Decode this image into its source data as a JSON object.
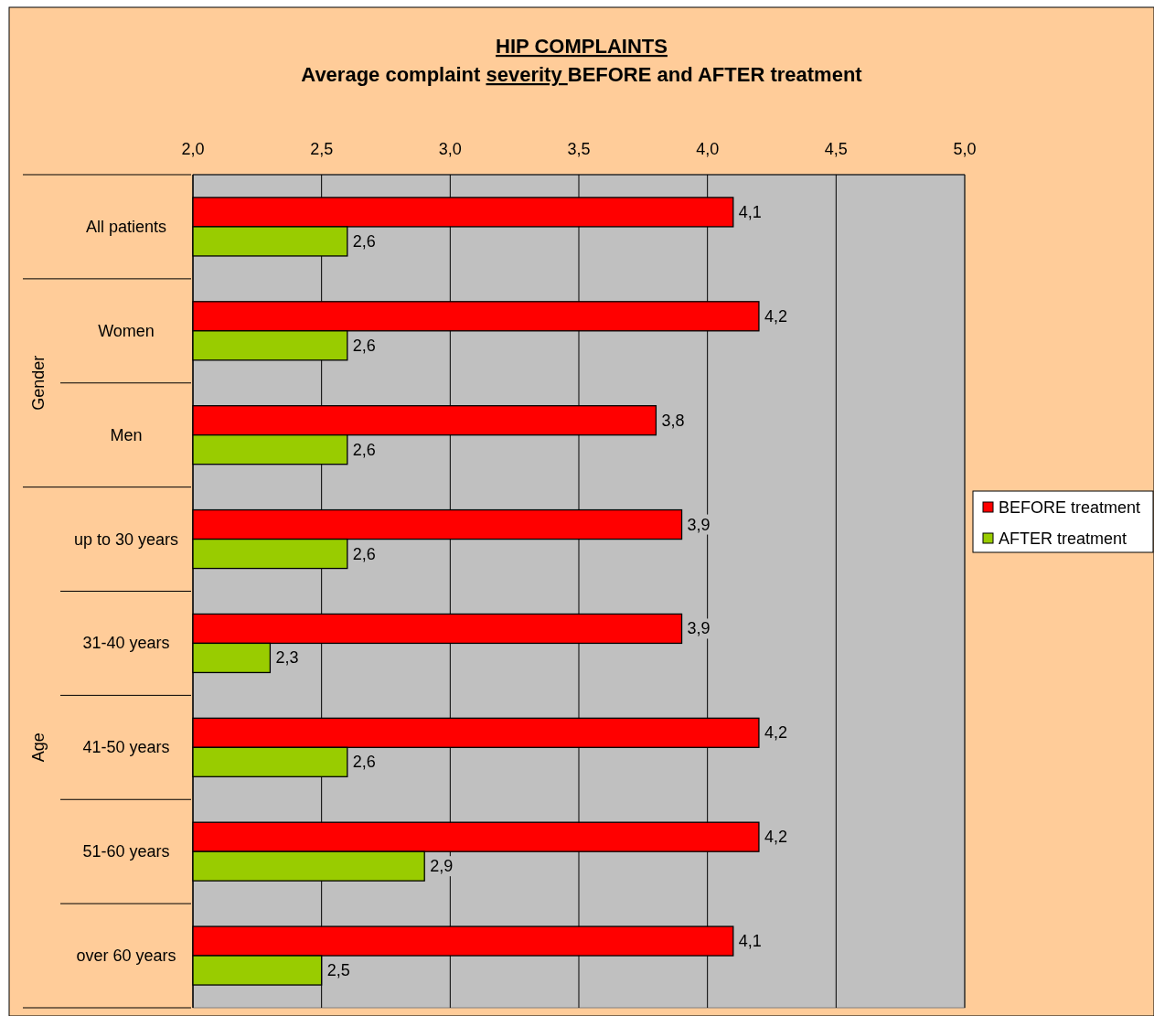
{
  "chart_data": {
    "type": "bar",
    "orientation": "horizontal",
    "title": "HIP COMPLAINTS",
    "subtitle": "Average complaint severity BEFORE and AFTER treatment",
    "categories": [
      "All patients",
      "Women",
      "Men",
      "up to 30 years",
      "31-40 years",
      "41-50 years",
      "51-60 years",
      "over 60 years"
    ],
    "series": [
      {
        "name": "BEFORE treatment",
        "color": "#ff0000",
        "values": [
          4.1,
          4.2,
          3.8,
          3.9,
          3.9,
          4.2,
          4.2,
          4.1
        ],
        "value_labels": [
          "4,1",
          "4,2",
          "3,8",
          "3,9",
          "3,9",
          "4,2",
          "4,2",
          "4,1"
        ]
      },
      {
        "name": "AFTER treatment",
        "color": "#99cc00",
        "values": [
          2.6,
          2.6,
          2.6,
          2.6,
          2.3,
          2.6,
          2.9,
          2.5
        ],
        "value_labels": [
          "2,6",
          "2,6",
          "2,6",
          "2,6",
          "2,3",
          "2,6",
          "2,9",
          "2,5"
        ]
      }
    ],
    "xlim": [
      2,
      5
    ],
    "xticks": [
      {
        "value": 2,
        "label": "2,0"
      },
      {
        "value": 2.5,
        "label": "2,5"
      },
      {
        "value": 3,
        "label": "3,0"
      },
      {
        "value": 3.5,
        "label": "3,5"
      },
      {
        "value": 4,
        "label": "4,0"
      },
      {
        "value": 4.5,
        "label": "4,5"
      },
      {
        "value": 5,
        "label": "5,0"
      }
    ],
    "annotations": [
      "Gender",
      "Age"
    ],
    "grid": "x",
    "legend": "right"
  }
}
